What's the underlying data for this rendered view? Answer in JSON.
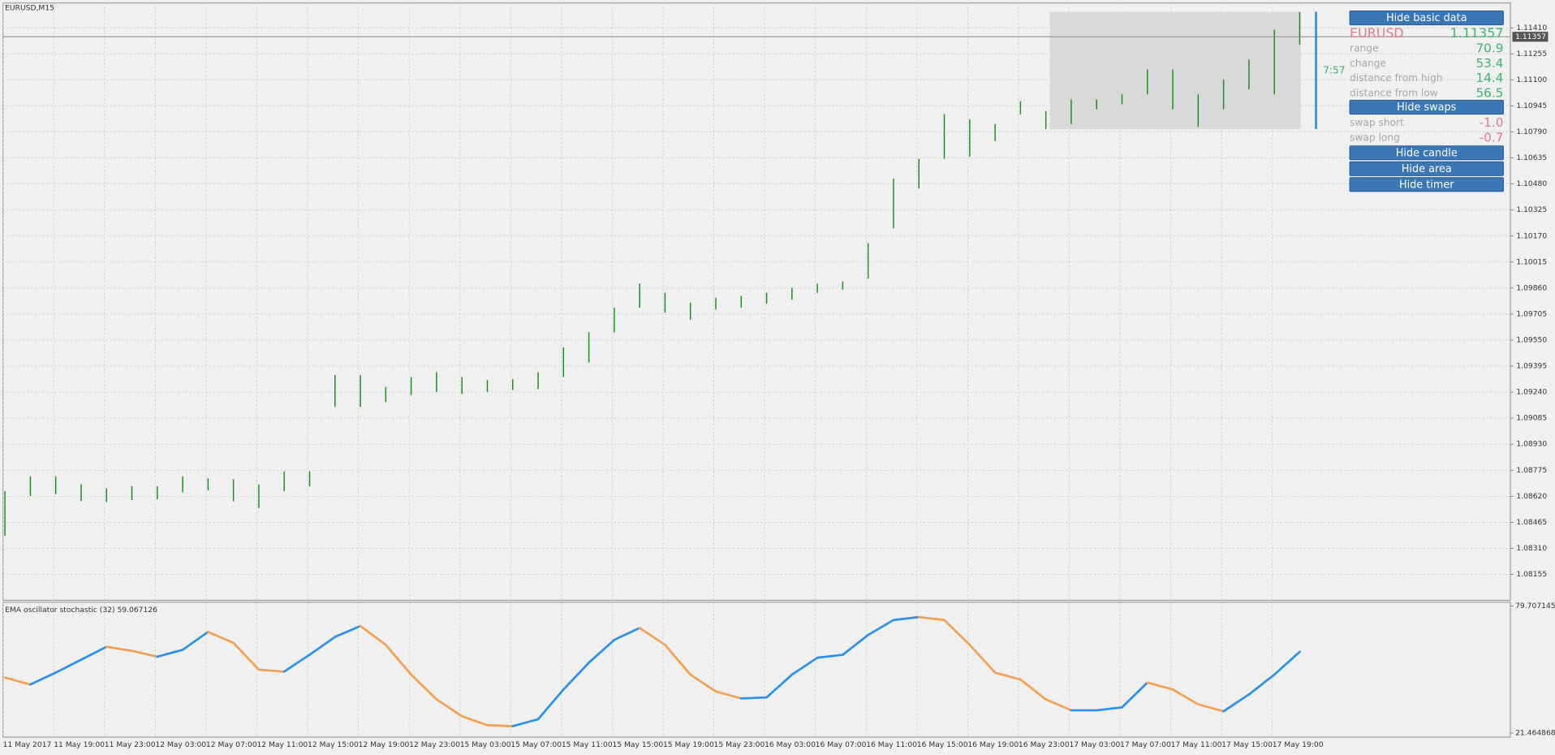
{
  "window_title": "EURUSD,M15",
  "chart_data": [
    {
      "type": "ohlc",
      "ylim": [
        1.08001,
        1.11558
      ],
      "yticks": [
        {
          "value": 1.1141,
          "label": "1.11410"
        },
        {
          "value": 1.11255,
          "label": "1.11255"
        },
        {
          "value": 1.111,
          "label": "1.11100"
        },
        {
          "value": 1.10945,
          "label": "1.10945"
        },
        {
          "value": 1.1079,
          "label": "1.10790"
        },
        {
          "value": 1.10635,
          "label": "1.10635"
        },
        {
          "value": 1.1048,
          "label": "1.10480"
        },
        {
          "value": 1.10325,
          "label": "1.10325"
        },
        {
          "value": 1.1017,
          "label": "1.10170"
        },
        {
          "value": 1.10015,
          "label": "1.10015"
        },
        {
          "value": 1.0986,
          "label": "1.09860"
        },
        {
          "value": 1.09705,
          "label": "1.09705"
        },
        {
          "value": 1.0955,
          "label": "1.09550"
        },
        {
          "value": 1.09395,
          "label": "1.09395"
        },
        {
          "value": 1.0924,
          "label": "1.09240"
        },
        {
          "value": 1.09085,
          "label": "1.09085"
        },
        {
          "value": 1.0893,
          "label": "1.08930"
        },
        {
          "value": 1.08775,
          "label": "1.08775"
        },
        {
          "value": 1.0862,
          "label": "1.08620"
        },
        {
          "value": 1.08465,
          "label": "1.08465"
        },
        {
          "value": 1.0831,
          "label": "1.08310"
        },
        {
          "value": 1.08155,
          "label": "1.08155"
        }
      ],
      "grid": true,
      "color": "#1c8c1c",
      "high": [
        1.0865,
        1.08739,
        1.08739,
        1.08691,
        1.08668,
        1.0868,
        1.0868,
        1.08739,
        1.08727,
        1.08721,
        1.08691,
        1.08768,
        1.08768,
        1.09342,
        1.09342,
        1.09271,
        1.0933,
        1.09359,
        1.0933,
        1.09312,
        1.09318,
        1.09359,
        1.09507,
        1.09596,
        1.09743,
        1.09887,
        1.09832,
        1.09773,
        1.09803,
        1.09814,
        1.09832,
        1.09862,
        1.09887,
        1.09899,
        1.10128,
        1.10512,
        1.1063,
        1.10896,
        1.10866,
        1.10837,
        1.10973,
        1.10914,
        1.10984,
        1.10984,
        1.11014,
        1.11162,
        1.11162,
        1.11014,
        1.11103,
        1.11221,
        1.11398,
        1.11505
      ],
      "low": [
        1.08384,
        1.08621,
        1.08632,
        1.08591,
        1.08585,
        1.08597,
        1.08603,
        1.08644,
        1.08656,
        1.08591,
        1.0855,
        1.0865,
        1.0868,
        1.09152,
        1.09152,
        1.09182,
        1.09223,
        1.09241,
        1.09229,
        1.09241,
        1.09253,
        1.09259,
        1.0933,
        1.09418,
        1.09596,
        1.09743,
        1.09714,
        1.09672,
        1.09732,
        1.09743,
        1.09767,
        1.09791,
        1.09832,
        1.0985,
        1.09917,
        1.10216,
        1.10453,
        1.1063,
        1.10642,
        1.10736,
        1.10896,
        1.10807,
        1.10837,
        1.10925,
        1.10955,
        1.11014,
        1.10925,
        1.10819,
        1.10925,
        1.11044,
        1.11014,
        1.1131
      ],
      "x_labels": [
        "11 May 2017",
        "11 May 19:00",
        "11 May 23:00",
        "12 May 03:00",
        "12 May 07:00",
        "12 May 11:00",
        "12 May 15:00",
        "12 May 19:00",
        "12 May 23:00",
        "15 May 03:00",
        "15 May 07:00",
        "15 May 11:00",
        "15 May 15:00",
        "15 May 19:00",
        "15 May 23:00",
        "16 May 03:00",
        "16 May 07:00",
        "16 May 11:00",
        "16 May 15:00",
        "16 May 19:00",
        "16 May 23:00",
        "17 May 03:00",
        "17 May 07:00",
        "17 May 11:00",
        "17 May 15:00",
        "17 May 19:00"
      ],
      "current_price": 1.11357,
      "timer": "7:57"
    },
    {
      "type": "line",
      "title": "EMA oscillator stochastic (32) 59.067126",
      "ylim": [
        21.464868,
        79.707145
      ],
      "yticks": [
        21.464868,
        79.707145
      ],
      "values": [
        46.95,
        43.76,
        49.22,
        55.14,
        61.05,
        59.23,
        56.5,
        59.69,
        67.88,
        62.87,
        50.59,
        49.68,
        57.41,
        65.6,
        70.61,
        61.96,
        48.31,
        36.94,
        29.2,
        25.11,
        24.65,
        27.84,
        41.49,
        53.77,
        64.24,
        69.7,
        61.96,
        48.31,
        40.58,
        37.39,
        37.85,
        48.31,
        56.05,
        57.41,
        66.51,
        73.34,
        74.7,
        73.34,
        61.96,
        49.22,
        46.04,
        36.94,
        31.93,
        31.93,
        33.3,
        44.67,
        41.49,
        34.66,
        31.48,
        39.21,
        48.31,
        58.78
      ],
      "rising_color": "#2a8ff0",
      "falling_color": "#f4a050"
    }
  ],
  "panel": {
    "buttons": [
      "Hide basic data",
      "Hide swaps",
      "Hide candle",
      "Hide area",
      "Hide timer"
    ],
    "symbol": "EURUSD",
    "price": "1.11357",
    "stats": [
      {
        "label": "range",
        "value": "70.9"
      },
      {
        "label": "change",
        "value": "53.4"
      },
      {
        "label": "distance from high",
        "value": "14.4"
      },
      {
        "label": "distance from low",
        "value": "56.5"
      }
    ],
    "swaps": [
      {
        "label": "swap short",
        "value": "-1.0"
      },
      {
        "label": "swap long",
        "value": "-0.7"
      }
    ]
  }
}
